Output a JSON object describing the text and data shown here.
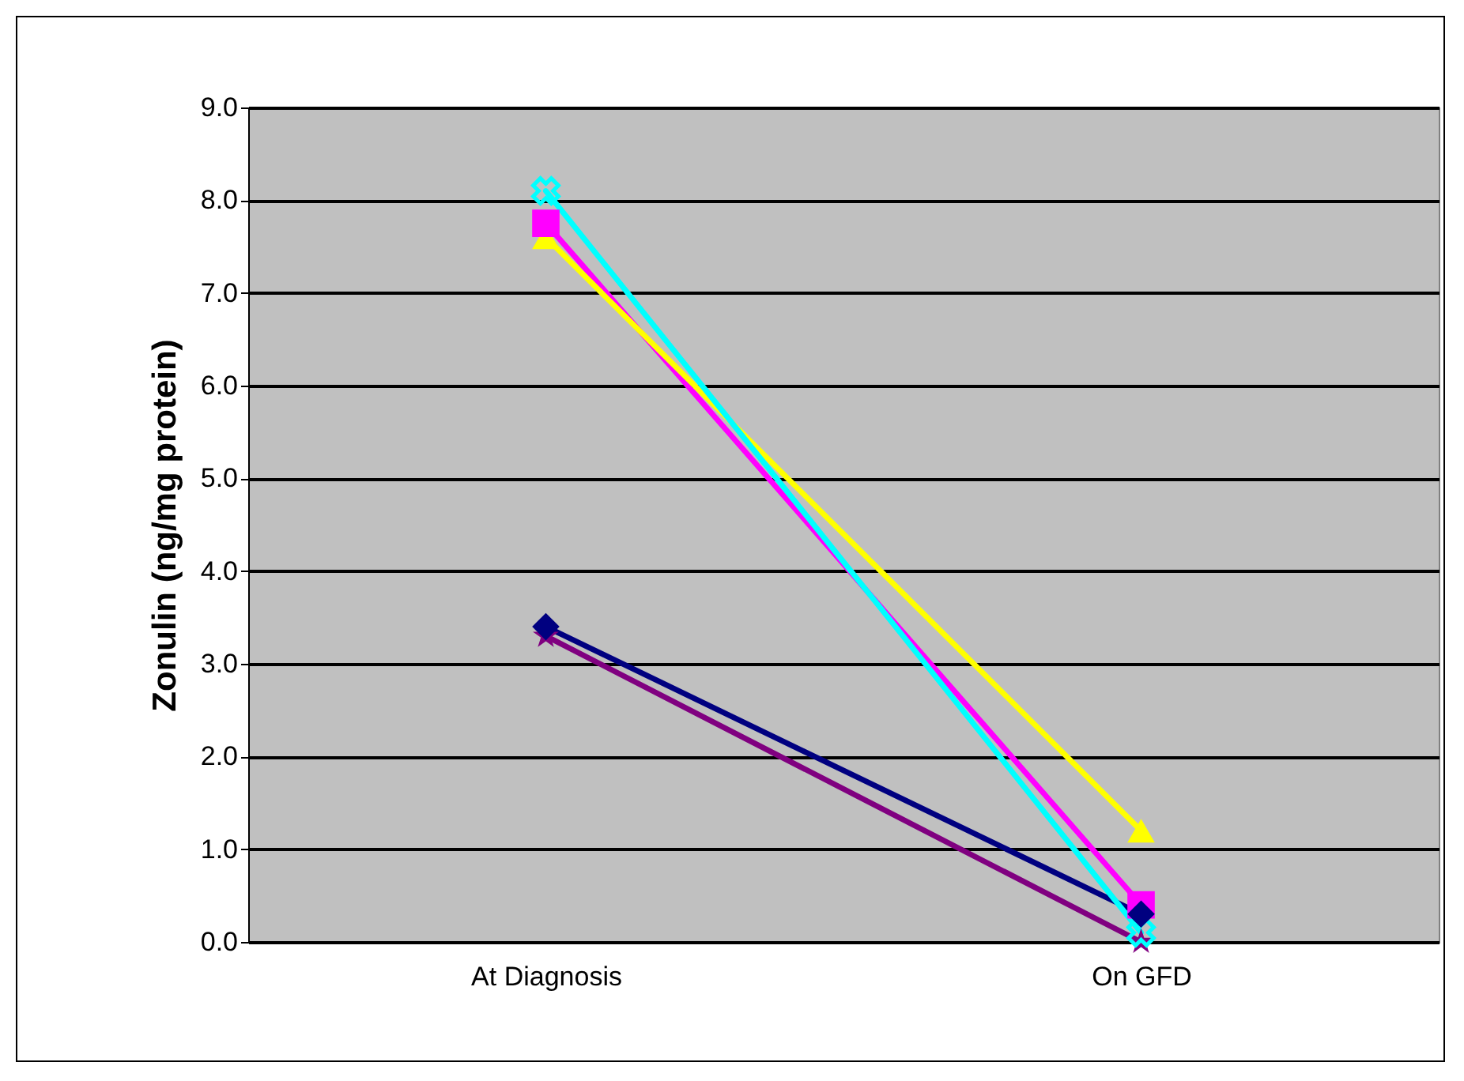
{
  "chart_data": {
    "type": "line",
    "ylabel": "Zonulin (ng/mg protein)",
    "categories": [
      "At Diagnosis",
      "On GFD"
    ],
    "ylim": [
      0,
      9
    ],
    "yticks": [
      {
        "value": 0,
        "label": "0.0"
      },
      {
        "value": 1,
        "label": "1.0"
      },
      {
        "value": 2,
        "label": "2.0"
      },
      {
        "value": 3,
        "label": "3.0"
      },
      {
        "value": 4,
        "label": "4.0"
      },
      {
        "value": 5,
        "label": "5.0"
      },
      {
        "value": 6,
        "label": "6.0"
      },
      {
        "value": 7,
        "label": "7.0"
      },
      {
        "value": 8,
        "label": "8.0"
      },
      {
        "value": 9,
        "label": "9.0"
      }
    ],
    "grid": "y",
    "legend": false,
    "line_style": "solid",
    "series": [
      {
        "color": "#000080",
        "marker": "diamond",
        "values": [
          3.4,
          0.3
        ]
      },
      {
        "color": "#ff00ff",
        "marker": "square",
        "values": [
          7.75,
          0.4
        ]
      },
      {
        "color": "#ffff00",
        "marker": "triangle",
        "values": [
          7.6,
          1.2
        ]
      },
      {
        "color": "#00ffff",
        "marker": "cross",
        "values": [
          8.1,
          0.1
        ]
      },
      {
        "color": "#800080",
        "marker": "star",
        "values": [
          3.3,
          0.0
        ]
      }
    ]
  }
}
